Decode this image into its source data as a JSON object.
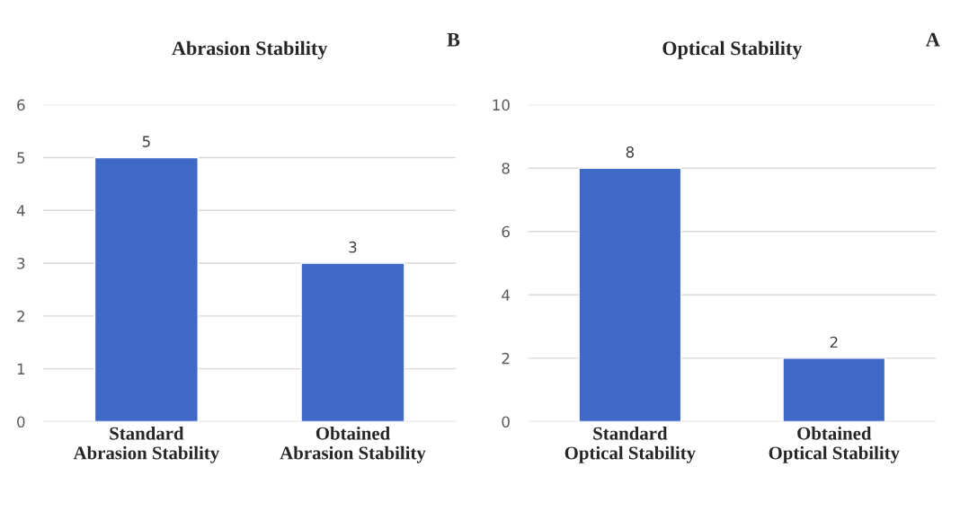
{
  "chart_data": [
    {
      "type": "bar",
      "title": "Abrasion Stability",
      "categories": [
        "Standard\nAbrasion Stability",
        "Obtained\nAbrasion Stability"
      ],
      "values": [
        5,
        3
      ],
      "color": "#3f69c6",
      "ylim": [
        0,
        6
      ],
      "yticks": [
        0,
        1,
        2,
        3,
        4,
        5,
        6
      ],
      "grid": "y",
      "data_labels": true,
      "annotations": [
        "B"
      ]
    },
    {
      "type": "bar",
      "title": "Optical Stability",
      "categories": [
        "Standard\nOptical Stability",
        "Obtained\nOptical Stability"
      ],
      "values": [
        8,
        2
      ],
      "color": "#3f69c6",
      "ylim": [
        0,
        10
      ],
      "yticks": [
        0,
        2,
        4,
        6,
        8,
        10
      ],
      "grid": "y",
      "data_labels": true,
      "annotations": [
        "A"
      ]
    }
  ]
}
